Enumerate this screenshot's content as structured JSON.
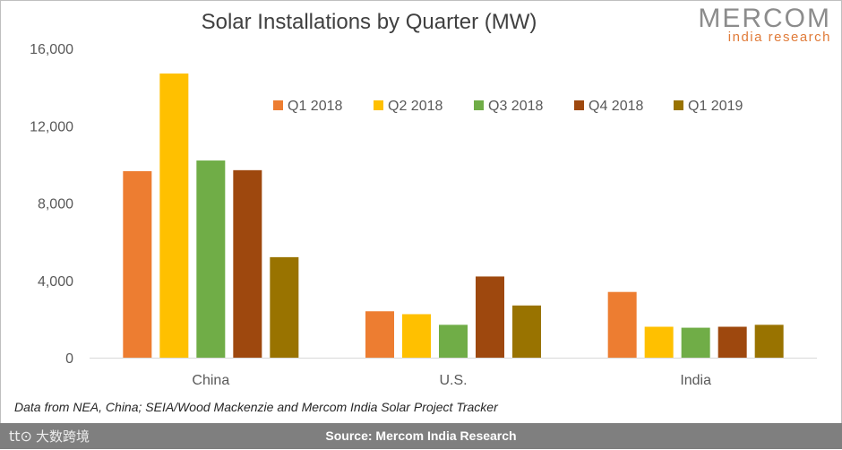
{
  "logo": {
    "main": "MERCOM",
    "sub": "india research"
  },
  "chart_data": {
    "type": "bar",
    "title": "Solar Installations by Quarter (MW)",
    "categories": [
      "China",
      "U.S.",
      "India"
    ],
    "series": [
      {
        "name": "Q1 2018",
        "color": "#ed7d31",
        "values": [
          9650,
          2400,
          3400
        ]
      },
      {
        "name": "Q2 2018",
        "color": "#ffc000",
        "values": [
          14700,
          2250,
          1600
        ]
      },
      {
        "name": "Q3 2018",
        "color": "#70ad47",
        "values": [
          10200,
          1700,
          1550
        ]
      },
      {
        "name": "Q4 2018",
        "color": "#9e480e",
        "values": [
          9700,
          4200,
          1600
        ]
      },
      {
        "name": "Q1 2019",
        "color": "#997300",
        "values": [
          5200,
          2700,
          1700
        ]
      }
    ],
    "ylim": [
      0,
      16000
    ],
    "yticks": [
      0,
      4000,
      8000,
      12000,
      16000
    ],
    "ytick_labels": [
      "0",
      "4,000",
      "8,000",
      "12,000",
      "16,000"
    ],
    "xlabel": "",
    "ylabel": "",
    "legend_position": "top-right",
    "grid": false
  },
  "note": "Data from NEA, China; SEIA/Wood Mackenzie and Mercom India Solar Project Tracker",
  "footer": {
    "source": "Source: Mercom India Research",
    "watermark": "大数跨境",
    "watermark_mark": "tt⊙"
  }
}
